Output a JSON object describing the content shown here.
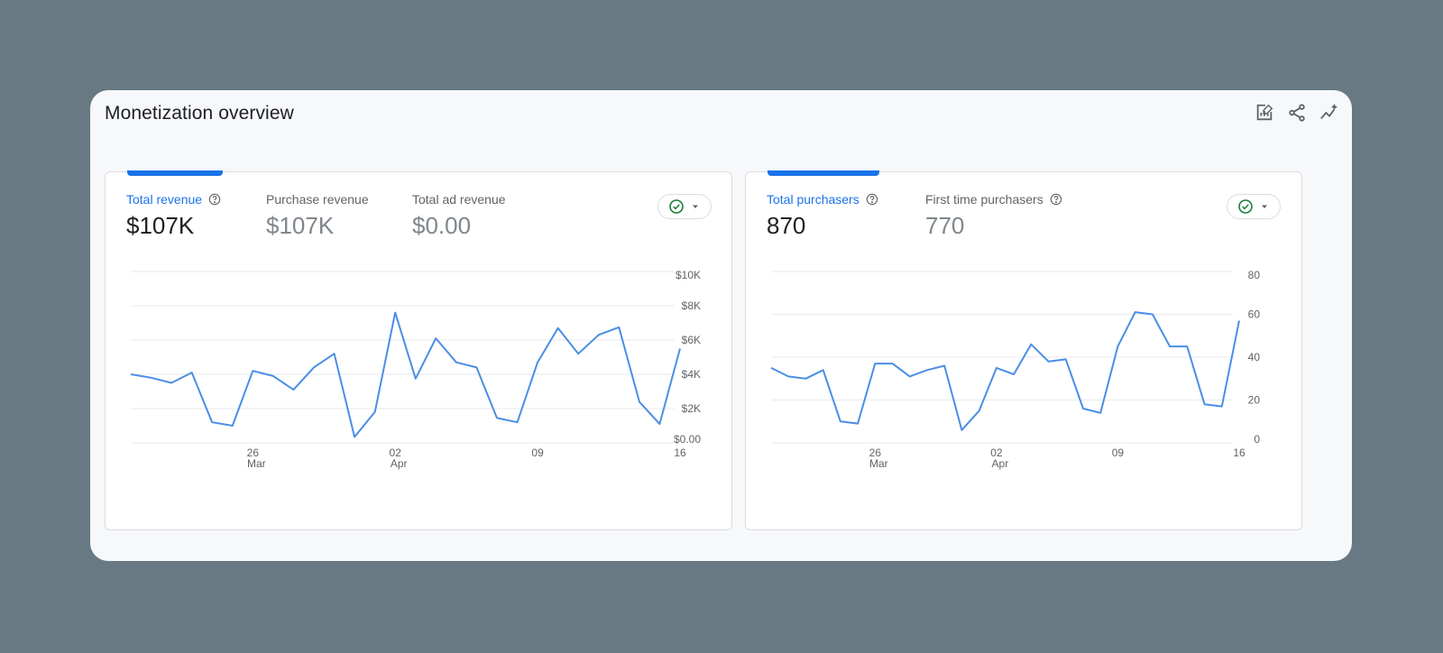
{
  "panel": {
    "title": "Monetization overview",
    "toolbar": [
      {
        "name": "customize-report-icon"
      },
      {
        "name": "share-icon"
      },
      {
        "name": "insights-icon"
      }
    ]
  },
  "colors": {
    "accent": "#1a73e8",
    "line": "#4a8ee6",
    "grid": "#e8eaed",
    "check": "#188038"
  },
  "revenue_card": {
    "metrics": [
      {
        "label": "Total revenue",
        "value": "$107K",
        "active": true,
        "help": true
      },
      {
        "label": "Purchase revenue",
        "value": "$107K",
        "active": false,
        "help": false
      },
      {
        "label": "Total ad revenue",
        "value": "$0.00",
        "active": false,
        "help": false
      }
    ],
    "compare_icon": "check-circle-icon"
  },
  "purchasers_card": {
    "metrics": [
      {
        "label": "Total purchasers",
        "value": "870",
        "active": true,
        "help": true
      },
      {
        "label": "First time purchasers",
        "value": "770",
        "active": false,
        "help": true
      }
    ],
    "compare_icon": "check-circle-icon"
  },
  "chart_data": [
    {
      "type": "line",
      "title": "",
      "series": [
        {
          "values": [
            4000,
            3800,
            3500,
            4100,
            1200,
            1000,
            4200,
            3900,
            3100,
            4400,
            5200,
            350,
            1800,
            7600,
            3750,
            6100,
            4700,
            4400,
            1450,
            1200,
            4700,
            6700,
            5200,
            6300,
            6750,
            2400,
            1100,
            5500
          ]
        }
      ],
      "x_start": "2024-03-20",
      "x_ticks": [
        {
          "day": "26",
          "month": "Mar",
          "index": 6
        },
        {
          "day": "02",
          "month": "Apr",
          "index": 13
        },
        {
          "day": "09",
          "month": "",
          "index": 20
        },
        {
          "day": "16",
          "month": "",
          "index": 27
        }
      ],
      "y_ticks": [
        "$10K",
        "$8K",
        "$6K",
        "$4K",
        "$2K",
        "$0.00"
      ],
      "ylim": [
        0,
        10000
      ],
      "grid": true
    },
    {
      "type": "line",
      "title": "",
      "series": [
        {
          "values": [
            35,
            31,
            30,
            34,
            10,
            9,
            37,
            37,
            31,
            34,
            36,
            6,
            15,
            35,
            32,
            46,
            38,
            39,
            16,
            14,
            45,
            61,
            60,
            45,
            45,
            18,
            17,
            57
          ]
        }
      ],
      "x_start": "2024-03-20",
      "x_ticks": [
        {
          "day": "26",
          "month": "Mar",
          "index": 6
        },
        {
          "day": "02",
          "month": "Apr",
          "index": 13
        },
        {
          "day": "09",
          "month": "",
          "index": 20
        },
        {
          "day": "16",
          "month": "",
          "index": 27
        }
      ],
      "y_ticks": [
        "80",
        "60",
        "40",
        "20",
        "0"
      ],
      "ylim": [
        0,
        80
      ],
      "grid": true
    }
  ]
}
